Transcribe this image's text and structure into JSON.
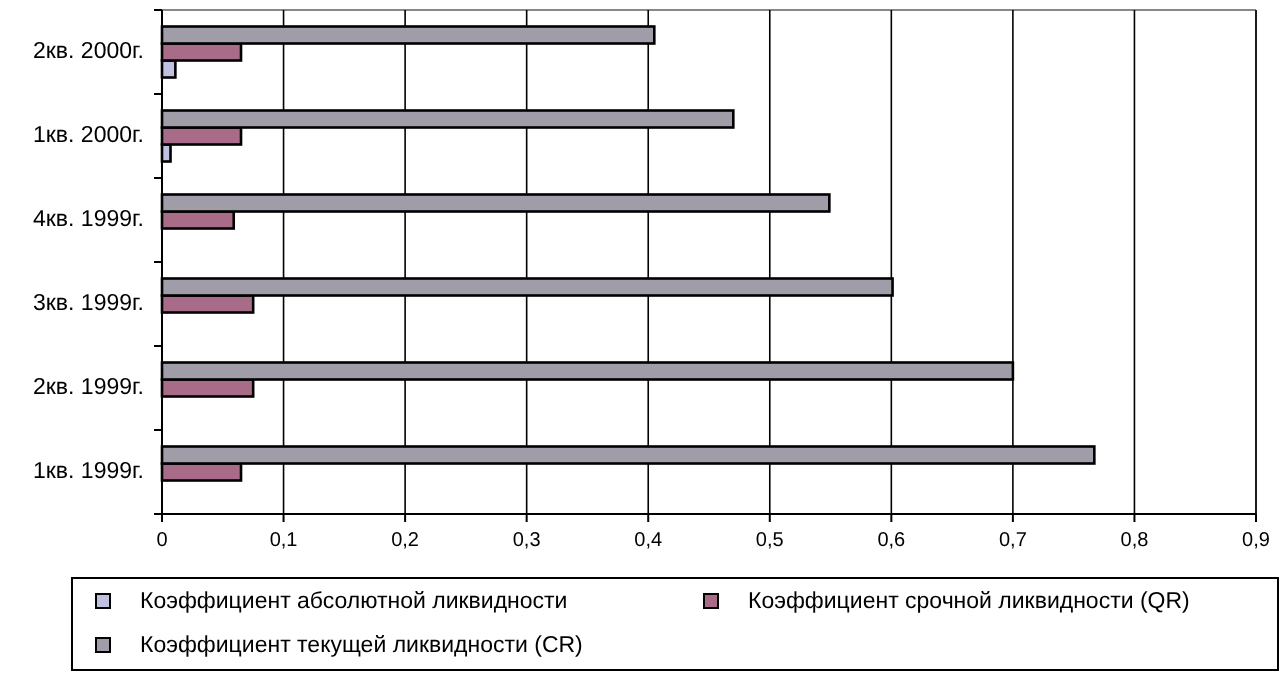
{
  "chart_data": {
    "type": "bar",
    "orientation": "horizontal",
    "categories": [
      "2кв. 2000г.",
      "1кв. 2000г.",
      "4кв. 1999г.",
      "3кв. 1999г.",
      "2кв. 1999г.",
      "1кв. 1999г."
    ],
    "series": [
      {
        "name": "Коэффициент абсолютной ликвидности",
        "color": "#c0c0e0",
        "values": [
          0.011,
          0.007,
          0,
          0,
          0,
          0
        ]
      },
      {
        "name": "Коэффициент срочной ликвидности (QR)",
        "color": "#a86c88",
        "values": [
          0.065,
          0.065,
          0.059,
          0.075,
          0.075,
          0.065
        ]
      },
      {
        "name": "Коэффициент текущей ликвидности (CR)",
        "color": "#a09ca8",
        "values": [
          0.405,
          0.47,
          0.549,
          0.601,
          0.7,
          0.767
        ]
      }
    ],
    "xlim": [
      0,
      0.9
    ],
    "xticks": [
      0,
      {
        "value": 0.1,
        "label": "0,1"
      },
      {
        "value": 0.2,
        "label": "0,2"
      },
      {
        "value": 0.3,
        "label": "0,3"
      },
      {
        "value": 0.4,
        "label": "0,4"
      },
      {
        "value": 0.5,
        "label": "0,5"
      },
      {
        "value": 0.6,
        "label": "0,6"
      },
      {
        "value": 0.7,
        "label": "0,7"
      },
      {
        "value": 0.8,
        "label": "0,8"
      },
      {
        "value": 0.9,
        "label": "0,9"
      }
    ],
    "grid": "x",
    "legend": "bottom"
  }
}
